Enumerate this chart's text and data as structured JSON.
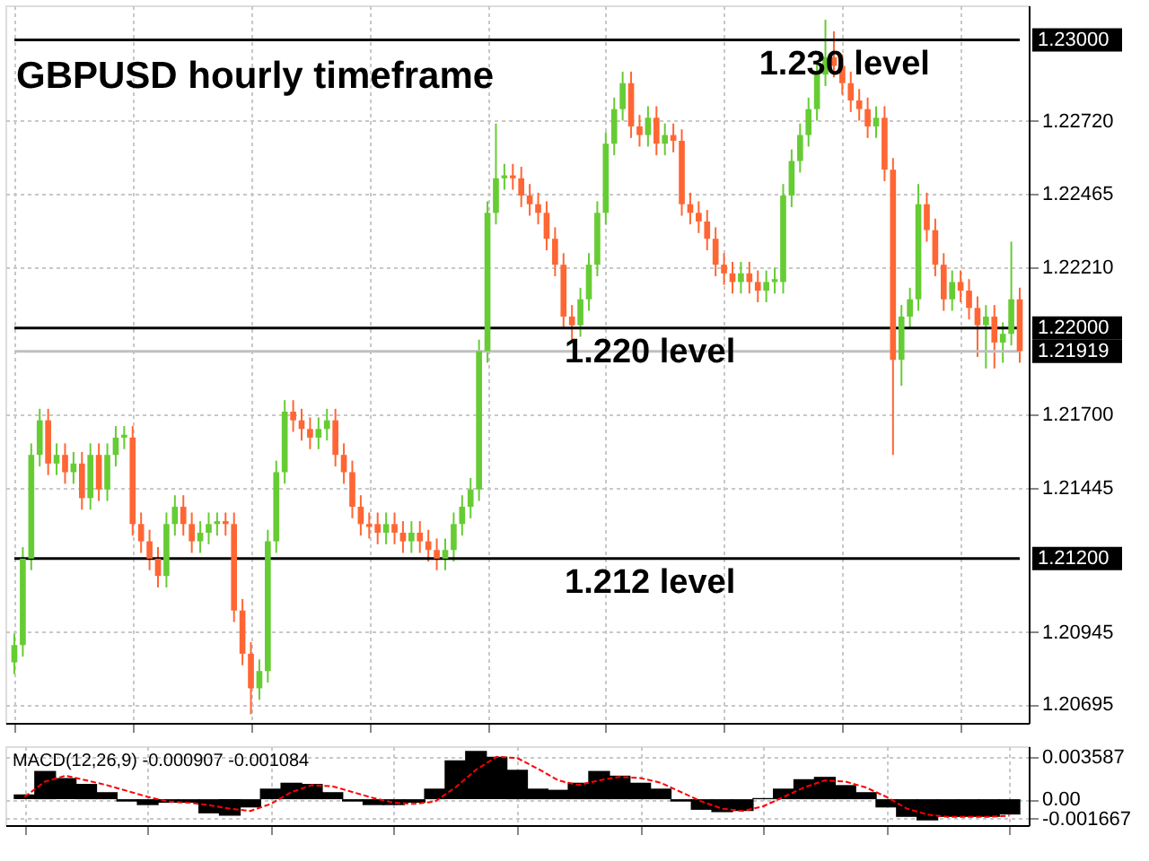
{
  "chart_data": [
    {
      "type": "candlestick",
      "title": "GBPUSD hourly timeframe",
      "categories": [
        null,
        null,
        null,
        null,
        null,
        null,
        null,
        null,
        null,
        null,
        null,
        null,
        null,
        null,
        null,
        null,
        null,
        null,
        null,
        null,
        null,
        null,
        null,
        null,
        null,
        null,
        null,
        null,
        null,
        null,
        null,
        null,
        null,
        null,
        null,
        null,
        null,
        null,
        null,
        null,
        null,
        null,
        null,
        null,
        null,
        null,
        null,
        null,
        null,
        null,
        null,
        null,
        null,
        null,
        null,
        null,
        null,
        null,
        null,
        null,
        null,
        null,
        null,
        null,
        null,
        null,
        null,
        null,
        null,
        null,
        null,
        null,
        null,
        null,
        null,
        null,
        null,
        null,
        null,
        null,
        null,
        null,
        null,
        null,
        null,
        null,
        null,
        null,
        null,
        null,
        null,
        null,
        null,
        null,
        null,
        null,
        null,
        null,
        null,
        null,
        null,
        null,
        null,
        null,
        null,
        null,
        null,
        null,
        null,
        null,
        null,
        null,
        null,
        null,
        null,
        null,
        null,
        null,
        null,
        null
      ],
      "ohlc": [
        [
          1.2084,
          1.2094,
          1.208,
          1.209
        ],
        [
          1.209,
          1.2124,
          1.2086,
          1.212
        ],
        [
          1.212,
          1.216,
          1.2116,
          1.2156
        ],
        [
          1.2156,
          1.2172,
          1.2152,
          1.2168
        ],
        [
          1.2168,
          1.2172,
          1.2149,
          1.2153
        ],
        [
          1.2153,
          1.216,
          1.2149,
          1.2156
        ],
        [
          1.2156,
          1.216,
          1.2146,
          1.215
        ],
        [
          1.215,
          1.2157,
          1.2146,
          1.2153
        ],
        [
          1.2153,
          1.2157,
          1.2137,
          1.2141
        ],
        [
          1.2141,
          1.216,
          1.2137,
          1.2156
        ],
        [
          1.2156,
          1.216,
          1.214,
          1.2144
        ],
        [
          1.2144,
          1.216,
          1.214,
          1.2156
        ],
        [
          1.2156,
          1.2166,
          1.2152,
          1.2162
        ],
        [
          1.2162,
          1.2166,
          1.2158,
          1.2163
        ],
        [
          1.2162,
          1.2166,
          1.2128,
          1.2132
        ],
        [
          1.2132,
          1.2136,
          1.2122,
          1.2126
        ],
        [
          1.2126,
          1.213,
          1.2116,
          1.212
        ],
        [
          1.212,
          1.2124,
          1.211,
          1.2114
        ],
        [
          1.2114,
          1.2136,
          1.211,
          1.2132
        ],
        [
          1.2132,
          1.2142,
          1.2128,
          1.2138
        ],
        [
          1.2138,
          1.2142,
          1.2128,
          1.2132
        ],
        [
          1.2132,
          1.2136,
          1.2122,
          1.2126
        ],
        [
          1.2126,
          1.2133,
          1.2122,
          1.2129
        ],
        [
          1.2129,
          1.2136,
          1.2125,
          1.2132
        ],
        [
          1.2132,
          1.2136,
          1.2128,
          1.2133
        ],
        [
          1.2133,
          1.2136,
          1.2128,
          1.2132
        ],
        [
          1.2132,
          1.2136,
          1.2098,
          1.2102
        ],
        [
          1.2102,
          1.2106,
          1.2083,
          1.2087
        ],
        [
          1.2087,
          1.2091,
          1.2066,
          1.2075
        ],
        [
          1.2075,
          1.2085,
          1.2071,
          1.2081
        ],
        [
          1.2081,
          1.213,
          1.2077,
          1.2126
        ],
        [
          1.2126,
          1.2154,
          1.2122,
          1.215
        ],
        [
          1.215,
          1.2175,
          1.2146,
          1.2171
        ],
        [
          1.2171,
          1.2175,
          1.2164,
          1.2168
        ],
        [
          1.2168,
          1.2172,
          1.2161,
          1.2165
        ],
        [
          1.2165,
          1.2169,
          1.2158,
          1.2162
        ],
        [
          1.2162,
          1.2169,
          1.2158,
          1.2165
        ],
        [
          1.2165,
          1.2172,
          1.2161,
          1.2168
        ],
        [
          1.2168,
          1.2172,
          1.2152,
          1.2156
        ],
        [
          1.2156,
          1.216,
          1.2146,
          1.215
        ],
        [
          1.215,
          1.2154,
          1.2134,
          1.2138
        ],
        [
          1.2138,
          1.2142,
          1.2128,
          1.2132
        ],
        [
          1.2132,
          1.2136,
          1.2127,
          1.2131
        ],
        [
          1.2132,
          1.2136,
          1.2125,
          1.2129
        ],
        [
          1.2129,
          1.2136,
          1.2125,
          1.2132
        ],
        [
          1.2132,
          1.2136,
          1.2125,
          1.2129
        ],
        [
          1.2129,
          1.2133,
          1.2122,
          1.2126
        ],
        [
          1.2126,
          1.2133,
          1.2122,
          1.2129
        ],
        [
          1.2129,
          1.2133,
          1.2122,
          1.2126
        ],
        [
          1.2126,
          1.213,
          1.2119,
          1.2123
        ],
        [
          1.2123,
          1.2127,
          1.2116,
          1.212
        ],
        [
          1.212,
          1.2127,
          1.2116,
          1.2123
        ],
        [
          1.2123,
          1.2136,
          1.2119,
          1.2132
        ],
        [
          1.2132,
          1.2142,
          1.2128,
          1.2138
        ],
        [
          1.2138,
          1.2148,
          1.2134,
          1.2144
        ],
        [
          1.2144,
          1.2196,
          1.214,
          1.2192
        ],
        [
          1.2192,
          1.2244,
          1.2188,
          1.224
        ],
        [
          1.224,
          1.2271,
          1.2236,
          1.2252
        ],
        [
          1.2252,
          1.2257,
          1.2248,
          1.2253
        ],
        [
          1.2253,
          1.2257,
          1.2248,
          1.2252
        ],
        [
          1.2252,
          1.2256,
          1.2242,
          1.2246
        ],
        [
          1.2246,
          1.225,
          1.2239,
          1.2243
        ],
        [
          1.2243,
          1.2247,
          1.2236,
          1.224
        ],
        [
          1.224,
          1.2244,
          1.2227,
          1.2231
        ],
        [
          1.2231,
          1.2235,
          1.2218,
          1.2222
        ],
        [
          1.2222,
          1.2226,
          1.22,
          1.2204
        ],
        [
          1.2204,
          1.2208,
          1.2195,
          1.2201
        ],
        [
          1.2201,
          1.2214,
          1.2197,
          1.221
        ],
        [
          1.221,
          1.2226,
          1.2206,
          1.2222
        ],
        [
          1.2222,
          1.2244,
          1.2218,
          1.224
        ],
        [
          1.224,
          1.2268,
          1.2236,
          1.2264
        ],
        [
          1.2264,
          1.228,
          1.226,
          1.2276
        ],
        [
          1.2276,
          1.2289,
          1.2272,
          1.2285
        ],
        [
          1.2285,
          1.2289,
          1.2266,
          1.227
        ],
        [
          1.227,
          1.2274,
          1.2263,
          1.2267
        ],
        [
          1.2267,
          1.2277,
          1.2263,
          1.2273
        ],
        [
          1.2273,
          1.2277,
          1.226,
          1.2264
        ],
        [
          1.2264,
          1.2271,
          1.226,
          1.2267
        ],
        [
          1.2267,
          1.2271,
          1.2261,
          1.2265
        ],
        [
          1.2265,
          1.2269,
          1.2239,
          1.2243
        ],
        [
          1.2243,
          1.2247,
          1.2236,
          1.224
        ],
        [
          1.224,
          1.2244,
          1.2233,
          1.2237
        ],
        [
          1.2237,
          1.2241,
          1.2227,
          1.2231
        ],
        [
          1.2231,
          1.2235,
          1.2218,
          1.2222
        ],
        [
          1.2222,
          1.2226,
          1.2215,
          1.2219
        ],
        [
          1.2219,
          1.2223,
          1.2212,
          1.2216
        ],
        [
          1.2216,
          1.2223,
          1.2212,
          1.2219
        ],
        [
          1.2219,
          1.2223,
          1.2212,
          1.2216
        ],
        [
          1.2216,
          1.222,
          1.2209,
          1.2213
        ],
        [
          1.2213,
          1.222,
          1.2209,
          1.2216
        ],
        [
          1.2216,
          1.2221,
          1.2212,
          1.2217
        ],
        [
          1.2216,
          1.225,
          1.2212,
          1.2246
        ],
        [
          1.2246,
          1.2262,
          1.2242,
          1.2258
        ],
        [
          1.2258,
          1.2271,
          1.2254,
          1.2267
        ],
        [
          1.2267,
          1.228,
          1.2263,
          1.2276
        ],
        [
          1.2276,
          1.2292,
          1.2272,
          1.2288
        ],
        [
          1.2288,
          1.2307,
          1.2284,
          1.2294
        ],
        [
          1.2294,
          1.2303,
          1.2287,
          1.2291
        ],
        [
          1.2291,
          1.2295,
          1.2281,
          1.2285
        ],
        [
          1.2285,
          1.2289,
          1.2275,
          1.2279
        ],
        [
          1.2279,
          1.2283,
          1.2272,
          1.2276
        ],
        [
          1.2276,
          1.228,
          1.2266,
          1.227
        ],
        [
          1.227,
          1.2277,
          1.2266,
          1.2273
        ],
        [
          1.2273,
          1.2277,
          1.2251,
          1.2255
        ],
        [
          1.2255,
          1.2259,
          1.2156,
          1.2189
        ],
        [
          1.2189,
          1.2208,
          1.218,
          1.2204
        ],
        [
          1.2204,
          1.2214,
          1.22,
          1.221
        ],
        [
          1.221,
          1.225,
          1.2206,
          1.2243
        ],
        [
          1.2243,
          1.2247,
          1.223,
          1.2234
        ],
        [
          1.2234,
          1.2238,
          1.2218,
          1.2222
        ],
        [
          1.2222,
          1.2226,
          1.2206,
          1.221
        ],
        [
          1.221,
          1.222,
          1.2206,
          1.2216
        ],
        [
          1.2216,
          1.222,
          1.2209,
          1.2213
        ],
        [
          1.2213,
          1.2217,
          1.2203,
          1.2207
        ],
        [
          1.2207,
          1.2211,
          1.219,
          1.2201
        ],
        [
          1.2201,
          1.2208,
          1.2186,
          1.2204
        ],
        [
          1.2204,
          1.2208,
          1.2186,
          1.2195
        ],
        [
          1.2195,
          1.2202,
          1.2188,
          1.2198
        ],
        [
          1.2198,
          1.223,
          1.2194,
          1.221
        ],
        [
          1.221,
          1.2214,
          1.2188,
          1.2192
        ]
      ],
      "colors": [
        "#66cc33",
        "#66cc33",
        "#66cc33",
        "#66cc33",
        "#ff6633",
        "#66cc33",
        "#ff6633",
        "#66cc33",
        "#ff6633",
        "#66cc33",
        "#ff6633",
        "#66cc33",
        "#66cc33",
        "#66cc33",
        "#ff6633",
        "#ff6633",
        "#ff6633",
        "#ff6633",
        "#66cc33",
        "#66cc33",
        "#ff6633",
        "#ff6633",
        "#66cc33",
        "#66cc33",
        "#66cc33",
        "#ff6633",
        "#ff6633",
        "#ff6633",
        "#ff6633",
        "#66cc33",
        "#66cc33",
        "#66cc33",
        "#66cc33",
        "#ff6633",
        "#ff6633",
        "#ff6633",
        "#66cc33",
        "#66cc33",
        "#ff6633",
        "#ff6633",
        "#ff6633",
        "#ff6633",
        "#ff6633",
        "#ff6633",
        "#66cc33",
        "#ff6633",
        "#ff6633",
        "#66cc33",
        "#ff6633",
        "#ff6633",
        "#ff6633",
        "#66cc33",
        "#66cc33",
        "#66cc33",
        "#66cc33",
        "#66cc33",
        "#66cc33",
        "#66cc33",
        "#66cc33",
        "#ff6633",
        "#ff6633",
        "#ff6633",
        "#ff6633",
        "#ff6633",
        "#ff6633",
        "#ff6633",
        "#ff6633",
        "#66cc33",
        "#66cc33",
        "#66cc33",
        "#66cc33",
        "#66cc33",
        "#66cc33",
        "#ff6633",
        "#ff6633",
        "#66cc33",
        "#ff6633",
        "#66cc33",
        "#ff6633",
        "#ff6633",
        "#ff6633",
        "#ff6633",
        "#ff6633",
        "#ff6633",
        "#ff6633",
        "#ff6633",
        "#66cc33",
        "#ff6633",
        "#ff6633",
        "#66cc33",
        "#66cc33",
        "#66cc33",
        "#66cc33",
        "#66cc33",
        "#66cc33",
        "#66cc33",
        "#66cc33",
        "#ff6633",
        "#ff6633",
        "#ff6633",
        "#ff6633",
        "#ff6633",
        "#66cc33",
        "#ff6633",
        "#ff6633",
        "#66cc33",
        "#66cc33",
        "#66cc33",
        "#ff6633",
        "#ff6633",
        "#ff6633",
        "#66cc33",
        "#ff6633",
        "#ff6633",
        "#ff6633",
        "#66cc33",
        "#ff6633",
        "#66cc33",
        "#66cc33",
        "#ff6633"
      ],
      "ylim": [
        1.2063,
        1.2312
      ],
      "yticks": [
        {
          "value": 1.2272,
          "label": "1.22720"
        },
        {
          "value": 1.22465,
          "label": "1.22465"
        },
        {
          "value": 1.2221,
          "label": "1.22210"
        },
        {
          "value": 1.217,
          "label": "1.21700"
        },
        {
          "value": 1.21445,
          "label": "1.21445"
        },
        {
          "value": 1.20945,
          "label": "1.20945"
        },
        {
          "value": 1.20695,
          "label": "1.20695"
        }
      ],
      "annotations": [
        "1.23000",
        "1.22000",
        "1.21200",
        "1.21919"
      ],
      "ref_lines": [
        {
          "axis": "y",
          "value": 1.23,
          "label": "1.230 level",
          "color": "#000000"
        },
        {
          "axis": "y",
          "value": 1.22,
          "label": "1.220 level",
          "color": "#000000"
        },
        {
          "axis": "y",
          "value": 1.212,
          "label": "1.212 level",
          "color": "#000000"
        },
        {
          "axis": "y",
          "value": 1.21919,
          "color": "#c0c0c0"
        }
      ],
      "grid": true
    },
    {
      "type": "bar",
      "title": "MACD(12,26,9) -0.000907 -0.001084",
      "categories": [
        null,
        null,
        null,
        null,
        null,
        null,
        null,
        null,
        null,
        null,
        null,
        null,
        null,
        null,
        null,
        null,
        null,
        null,
        null,
        null,
        null,
        null,
        null,
        null,
        null,
        null,
        null,
        null,
        null,
        null,
        null,
        null,
        null,
        null,
        null,
        null,
        null,
        null,
        null,
        null,
        null,
        null,
        null,
        null,
        null,
        null,
        null,
        null,
        null
      ],
      "series": [
        {
          "color": "#000000",
          "values": [
            0.0004,
            0.0024,
            0.0018,
            0.0013,
            0.0006,
            -0.0002,
            -0.0005,
            -0.0003,
            -0.0003,
            -0.0012,
            -0.0014,
            -0.0007,
            0.0009,
            0.0014,
            0.0013,
            0.0006,
            -0.0002,
            -0.0005,
            -0.0005,
            -0.0003,
            0.0009,
            0.0033,
            0.0041,
            0.0036,
            0.0025,
            0.0009,
            0.0008,
            0.0014,
            0.0024,
            0.002,
            0.0014,
            0.0009,
            -0.0002,
            -0.0009,
            -0.0011,
            -0.001,
            0.0001,
            0.0009,
            0.0017,
            0.0019,
            0.0012,
            0.0006,
            -0.0007,
            -0.0015,
            -0.0018,
            -0.0015,
            -0.0015,
            -0.0015,
            -0.0013
          ]
        },
        {
          "type": "line",
          "color": "#ff0000",
          "line_style": "dashed",
          "values": [
            0.0002,
            0.0015,
            0.002,
            0.0016,
            0.0012,
            0.0007,
            0.0002,
            -0.0002,
            -0.0003,
            -0.0005,
            -0.0008,
            -0.001,
            -0.0004,
            0.0006,
            0.0012,
            0.0011,
            0.0006,
            0.0001,
            -0.0003,
            -0.0004,
            -0.0002,
            0.001,
            0.0025,
            0.0036,
            0.0035,
            0.0026,
            0.0016,
            0.0012,
            0.0016,
            0.0019,
            0.0018,
            0.0014,
            0.0006,
            -0.0002,
            -0.0008,
            -0.001,
            -0.0006,
            0.0002,
            0.001,
            0.0016,
            0.0015,
            0.001,
            0.0002,
            -0.0008,
            -0.0013,
            -0.0015,
            -0.0015,
            -0.0015,
            -0.0014
          ]
        }
      ],
      "ylim": [
        -0.0022,
        0.0045
      ],
      "yticks": [
        0.003587,
        {
          "value": 0,
          "label": "0.00"
        },
        -0.001667
      ],
      "grid": true
    }
  ]
}
